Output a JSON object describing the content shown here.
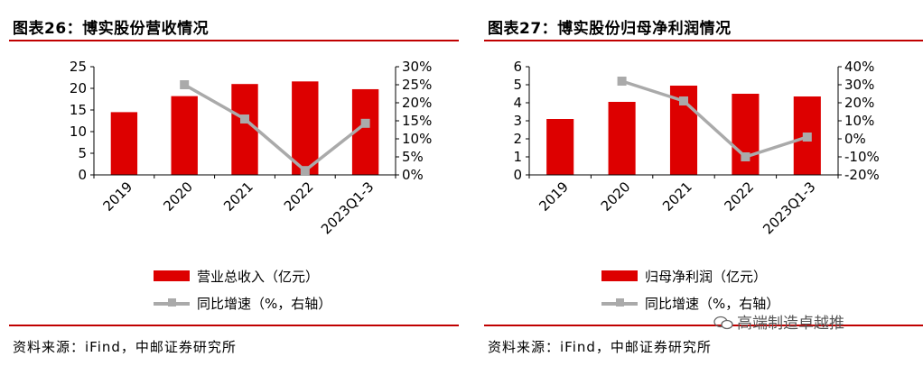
{
  "left": {
    "title": "图表26：博实股份营收情况",
    "source": "资料来源：iFind，中邮证券研究所",
    "legend": {
      "bar": "营业总收入（亿元）",
      "line": "同比增速（%，右轴）"
    },
    "colors": {
      "bar": "#dd0000",
      "line": "#aaaaaa"
    }
  },
  "right": {
    "title": "图表27：博实股份归母净利润情况",
    "source": "资料来源：iFind，中邮证券研究所",
    "legend": {
      "bar": "归母净利润（亿元）",
      "line": "同比增速（%，右轴）"
    },
    "colors": {
      "bar": "#dd0000",
      "line": "#aaaaaa"
    }
  },
  "watermark": {
    "text": "高端制造卓越推",
    "icon": "wechat-icon"
  },
  "chart_data": [
    {
      "type": "bar",
      "categories": [
        "2019",
        "2020",
        "2021",
        "2022",
        "2023Q1-3"
      ],
      "series": [
        {
          "name": "营业总收入（亿元）",
          "type": "bar",
          "axis": "left",
          "values": [
            14.5,
            18.2,
            21.0,
            21.6,
            19.8
          ]
        },
        {
          "name": "同比增速（%，右轴）",
          "type": "line",
          "axis": "right",
          "values": [
            null,
            25.0,
            15.5,
            1.2,
            14.3
          ]
        }
      ],
      "y_left": {
        "range": [
          0,
          25
        ],
        "ticks": [
          0,
          5,
          10,
          15,
          20,
          25
        ]
      },
      "y_right": {
        "range": [
          0,
          30
        ],
        "ticks": [
          0,
          5,
          10,
          15,
          20,
          25,
          30
        ],
        "unit": "%"
      },
      "grid": false,
      "legend_position": "bottom"
    },
    {
      "type": "bar",
      "categories": [
        "2019",
        "2020",
        "2021",
        "2022",
        "2023Q1-3"
      ],
      "series": [
        {
          "name": "归母净利润（亿元）",
          "type": "bar",
          "axis": "left",
          "values": [
            3.1,
            4.05,
            4.95,
            4.5,
            4.35
          ]
        },
        {
          "name": "同比增速（%，右轴）",
          "type": "line",
          "axis": "right",
          "values": [
            null,
            32,
            21,
            -10,
            1
          ]
        }
      ],
      "y_left": {
        "range": [
          0,
          6
        ],
        "ticks": [
          0,
          1,
          2,
          3,
          4,
          5,
          6
        ]
      },
      "y_right": {
        "range": [
          -20,
          40
        ],
        "ticks": [
          -20,
          -10,
          0,
          10,
          20,
          30,
          40
        ],
        "unit": "%"
      },
      "grid": false,
      "legend_position": "bottom"
    }
  ]
}
